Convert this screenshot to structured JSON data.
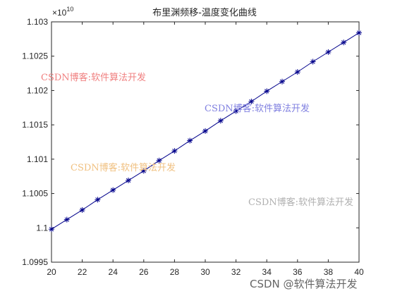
{
  "chart_data": {
    "type": "line",
    "title": "布里渊频移-温度变化曲线",
    "xlabel": "",
    "ylabel": "",
    "exponent_label": "×10",
    "exponent_power": "10",
    "xlim": [
      20,
      40
    ],
    "ylim": [
      1.0995,
      1.103
    ],
    "x_ticks": [
      "20",
      "22",
      "24",
      "26",
      "28",
      "30",
      "32",
      "34",
      "36",
      "38",
      "40"
    ],
    "y_ticks": [
      "1.0995",
      "1.1",
      "1.1005",
      "1.101",
      "1.1015",
      "1.102",
      "1.1025",
      "1.103"
    ],
    "grid": false,
    "series": [
      {
        "color": "#00008b",
        "marker": "*",
        "x": [
          20,
          21,
          22,
          23,
          24,
          25,
          26,
          27,
          28,
          29,
          30,
          31,
          32,
          33,
          34,
          35,
          36,
          37,
          38,
          39,
          40
        ],
        "y": [
          1.09998,
          1.10012,
          1.10026,
          1.10041,
          1.10055,
          1.10069,
          1.10083,
          1.10098,
          1.10112,
          1.10127,
          1.10141,
          1.10156,
          1.1017,
          1.10184,
          1.10199,
          1.10213,
          1.10227,
          1.10242,
          1.10256,
          1.1027,
          1.10284
        ]
      }
    ]
  },
  "watermarks": [
    {
      "text": "CSDN博客:软件算法开发",
      "color": "#f08080"
    },
    {
      "text": "CSDN博客:软件算法开发",
      "color": "#8080e0"
    },
    {
      "text": "CSDN博客:软件算法开发",
      "color": "#f0c080"
    },
    {
      "text": "CSDN博客:软件算法开发",
      "color": "#b0b0b0"
    }
  ],
  "brand": "CSDN @软件算法开发"
}
